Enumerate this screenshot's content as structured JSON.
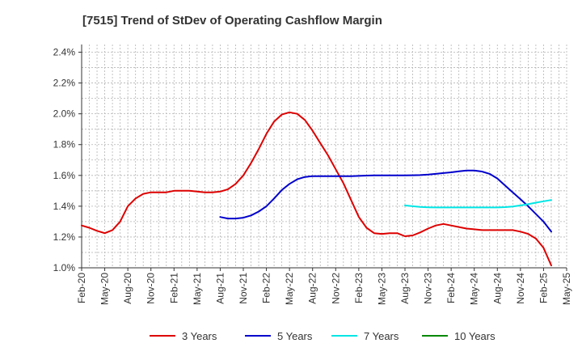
{
  "chart_data": {
    "type": "line",
    "title": "[7515]  Trend of StDev of Operating Cashflow Margin",
    "xlabel": "",
    "ylabel": "",
    "x_ticks": [
      "Feb-20",
      "May-20",
      "Aug-20",
      "Nov-20",
      "Feb-21",
      "May-21",
      "Aug-21",
      "Nov-21",
      "Feb-22",
      "May-22",
      "Aug-22",
      "Nov-22",
      "Feb-23",
      "May-23",
      "Aug-23",
      "Nov-23",
      "Feb-24",
      "May-24",
      "Aug-24",
      "Nov-24",
      "Feb-25",
      "May-25"
    ],
    "y_ticks": [
      "1.0%",
      "1.2%",
      "1.4%",
      "1.6%",
      "1.8%",
      "2.0%",
      "2.2%",
      "2.4%"
    ],
    "ylim": [
      1.0,
      2.45
    ],
    "xlim": [
      0,
      63
    ],
    "grid": true,
    "legend_position": "bottom",
    "series": [
      {
        "name": "3 Years",
        "color": "#dd0000",
        "start": 0,
        "values": [
          1.275,
          1.26,
          1.24,
          1.225,
          1.245,
          1.3,
          1.4,
          1.45,
          1.48,
          1.49,
          1.49,
          1.49,
          1.5,
          1.5,
          1.5,
          1.495,
          1.49,
          1.49,
          1.495,
          1.51,
          1.545,
          1.6,
          1.68,
          1.77,
          1.87,
          1.95,
          1.995,
          2.01,
          2.0,
          1.96,
          1.89,
          1.81,
          1.73,
          1.64,
          1.55,
          1.44,
          1.33,
          1.26,
          1.225,
          1.22,
          1.225,
          1.225,
          1.205,
          1.21,
          1.23,
          1.255,
          1.275,
          1.285,
          1.275,
          1.265,
          1.255,
          1.25,
          1.245,
          1.245,
          1.245,
          1.245,
          1.245,
          1.235,
          1.22,
          1.19,
          1.13,
          1.015
        ]
      },
      {
        "name": "5 Years",
        "color": "#0000cc",
        "start": 18,
        "values": [
          1.33,
          1.32,
          1.32,
          1.325,
          1.34,
          1.365,
          1.4,
          1.45,
          1.505,
          1.545,
          1.575,
          1.59,
          1.595,
          1.595,
          1.595,
          1.595,
          1.595,
          1.595,
          1.597,
          1.599,
          1.6,
          1.6,
          1.6,
          1.6,
          1.6,
          1.601,
          1.602,
          1.605,
          1.61,
          1.615,
          1.62,
          1.627,
          1.632,
          1.632,
          1.625,
          1.61,
          1.58,
          1.535,
          1.49,
          1.445,
          1.4,
          1.35,
          1.3,
          1.235
        ]
      },
      {
        "name": "7 Years",
        "color": "#00e5e5",
        "start": 42,
        "values": [
          1.405,
          1.4,
          1.395,
          1.393,
          1.392,
          1.392,
          1.392,
          1.392,
          1.392,
          1.392,
          1.392,
          1.392,
          1.392,
          1.394,
          1.398,
          1.405,
          1.413,
          1.423,
          1.432,
          1.44
        ]
      },
      {
        "name": "10 Years",
        "color": "#008800",
        "start": 0,
        "values": []
      }
    ]
  }
}
